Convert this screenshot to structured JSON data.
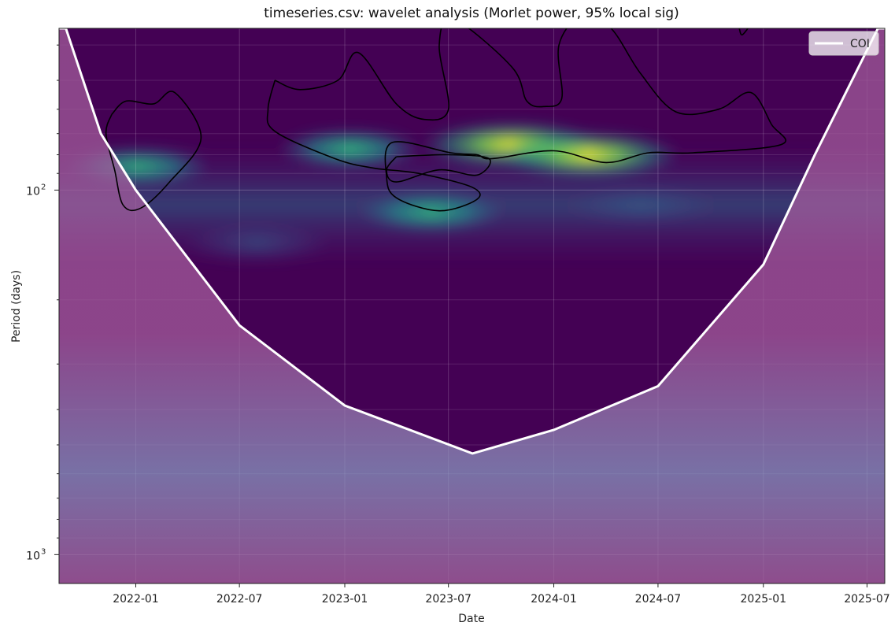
{
  "chart_data": {
    "type": "heatmap",
    "title": "timeseries.csv: wavelet analysis (Morlet power, 95% local sig)",
    "xlabel": "Date",
    "ylabel": "Period (days)",
    "x_range": [
      "2021-08-20",
      "2025-08-01"
    ],
    "y_range_days": [
      36,
      1200
    ],
    "y_scale": "log",
    "y_inverted": true,
    "x_ticks": [
      "2022-01",
      "2022-07",
      "2023-01",
      "2023-07",
      "2024-01",
      "2024-07",
      "2025-01",
      "2025-07"
    ],
    "y_ticks": [
      {
        "value": 100,
        "label": "10",
        "exp": "2"
      },
      {
        "value": 1000,
        "label": "10",
        "exp": "3"
      }
    ],
    "grid": true,
    "colormap": "viridis",
    "coi_shading": "#b065a0",
    "legend": {
      "position": "top-right",
      "entries": [
        {
          "name": "COI",
          "color": "#ffffff",
          "style": "line"
        }
      ]
    },
    "power_peaks": [
      {
        "date": "2022-01-05",
        "period": 86,
        "power": 0.55
      },
      {
        "date": "2023-01-10",
        "period": 77,
        "power": 0.6
      },
      {
        "date": "2023-06-01",
        "period": 115,
        "power": 0.55
      },
      {
        "date": "2023-10-20",
        "period": 75,
        "power": 1.0
      },
      {
        "date": "2024-03-01",
        "period": 80,
        "power": 0.85
      },
      {
        "date": "2022-08-01",
        "period": 140,
        "power": 0.35
      },
      {
        "date": "2024-06-01",
        "period": 110,
        "power": 0.3
      }
    ],
    "coi_curve": [
      {
        "date": "2021-08-20",
        "period": 36
      },
      {
        "date": "2021-09-01",
        "period": 36
      },
      {
        "date": "2021-11-01",
        "period": 70
      },
      {
        "date": "2022-01-01",
        "period": 100
      },
      {
        "date": "2022-07-01",
        "period": 235
      },
      {
        "date": "2023-01-01",
        "period": 390
      },
      {
        "date": "2023-08-12",
        "period": 528
      },
      {
        "date": "2024-01-01",
        "period": 455
      },
      {
        "date": "2024-07-01",
        "period": 345
      },
      {
        "date": "2025-01-01",
        "period": 160
      },
      {
        "date": "2025-04-01",
        "period": 80
      },
      {
        "date": "2025-07-20",
        "period": 36
      },
      {
        "date": "2025-08-01",
        "period": 36
      }
    ],
    "significance_contours": [
      [
        [
          "2021-11-20",
          62
        ],
        [
          "2021-12-15",
          57
        ],
        [
          "2022-02-01",
          58
        ],
        [
          "2022-03-10",
          54
        ],
        [
          "2022-04-25",
          72
        ],
        [
          "2022-03-01",
          95
        ],
        [
          "2022-01-10",
          112
        ],
        [
          "2021-12-10",
          110
        ],
        [
          "2021-11-25",
          88
        ],
        [
          "2021-11-10",
          70
        ],
        [
          "2021-11-20",
          62
        ]
      ],
      [
        [
          "2022-09-01",
          50
        ],
        [
          "2022-10-15",
          53
        ],
        [
          "2022-12-20",
          50
        ],
        [
          "2023-01-25",
          42
        ],
        [
          "2023-04-01",
          58
        ],
        [
          "2023-05-20",
          64
        ],
        [
          "2023-07-01",
          60
        ],
        [
          "2023-06-15",
          40
        ],
        [
          "2023-07-10",
          34
        ],
        [
          "2023-10-20",
          46
        ],
        [
          "2023-11-15",
          57
        ],
        [
          "2023-12-15",
          59
        ],
        [
          "2024-01-15",
          56
        ],
        [
          "2024-01-10",
          40
        ],
        [
          "2024-02-20",
          33
        ],
        [
          "2024-04-10",
          36
        ],
        [
          "2024-06-01",
          48
        ],
        [
          "2024-08-01",
          61
        ],
        [
          "2024-10-15",
          60
        ],
        [
          "2024-12-10",
          54
        ],
        [
          "2025-01-15",
          66
        ],
        [
          "2025-02-01",
          75
        ],
        [
          "2024-09-01",
          79
        ],
        [
          "2024-06-15",
          79
        ],
        [
          "2024-04-01",
          84
        ],
        [
          "2024-01-01",
          78
        ],
        [
          "2023-09-15",
          82
        ],
        [
          "2023-08-20",
          80
        ],
        [
          "2023-07-05",
          79
        ],
        [
          "2023-03-25",
          74
        ],
        [
          "2023-03-15",
          92
        ],
        [
          "2023-04-01",
          105
        ],
        [
          "2023-06-15",
          114
        ],
        [
          "2023-08-20",
          106
        ],
        [
          "2023-08-10",
          98
        ],
        [
          "2023-05-10",
          90
        ],
        [
          "2023-02-20",
          87
        ],
        [
          "2022-12-15",
          82
        ],
        [
          "2022-09-01",
          69
        ],
        [
          "2022-08-20",
          60
        ],
        [
          "2022-09-01",
          50
        ]
      ],
      [
        [
          "2023-04-01",
          81
        ],
        [
          "2023-07-01",
          80
        ],
        [
          "2023-09-10",
          82
        ],
        [
          "2023-08-20",
          91
        ],
        [
          "2023-06-15",
          88
        ],
        [
          "2023-04-01",
          95
        ],
        [
          "2023-03-15",
          88
        ],
        [
          "2023-04-01",
          81
        ]
      ],
      [
        [
          "2024-11-20",
          36
        ],
        [
          "2024-12-01",
          35.5
        ],
        [
          "2024-12-10",
          35
        ],
        [
          "2024-11-25",
          37.5
        ],
        [
          "2024-11-20",
          36
        ]
      ]
    ]
  }
}
